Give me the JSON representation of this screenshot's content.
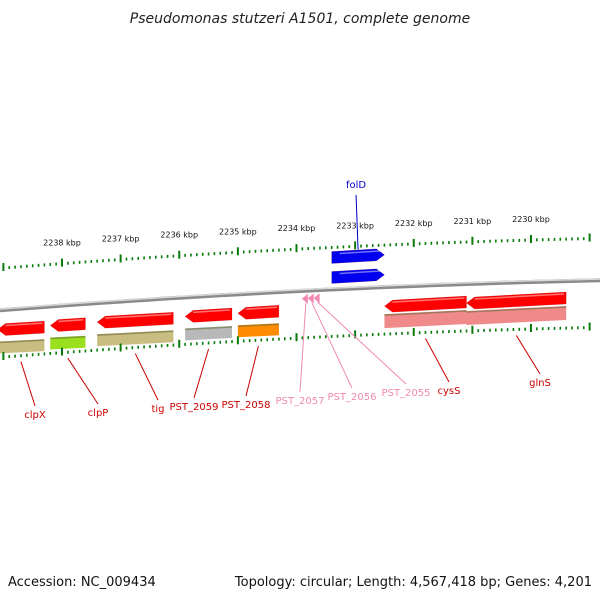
{
  "title": "Pseudomonas stutzeri A1501, complete genome",
  "footer": {
    "accession": "Accession: NC_009434",
    "summary": "Topology: circular; Length: 4,567,418 bp; Genes: 4,201"
  },
  "colors": {
    "cds_red": "#ff0000",
    "cds_pink": "#f08a8a",
    "rna_blue": "#0000ee",
    "tick_green": "#0a7a0a",
    "track_olive": "#c9bd82",
    "track_grey": "#b8b8b8",
    "track_orange": "#ff8c00",
    "track_lime": "#9be01e",
    "backbone": "#8a8a8a",
    "label_red": "#cc0000",
    "label_pink": "#f08ab0",
    "label_blue": "#0000cc"
  },
  "scale": {
    "unit": "kbp",
    "ticks": [
      {
        "kbp": 2238,
        "label": "2238 kbp"
      },
      {
        "kbp": 2237,
        "label": "2237 kbp"
      },
      {
        "kbp": 2236,
        "label": "2236 kbp"
      },
      {
        "kbp": 2235,
        "label": "2235 kbp"
      },
      {
        "kbp": 2234,
        "label": "2234 kbp"
      },
      {
        "kbp": 2233,
        "label": "2233 kbp"
      },
      {
        "kbp": 2232,
        "label": "2232 kbp"
      },
      {
        "kbp": 2231,
        "label": "2231 kbp"
      },
      {
        "kbp": 2230,
        "label": "2230 kbp"
      }
    ]
  },
  "genes": [
    {
      "name": "clpX",
      "type": "cds",
      "strand": "-",
      "start": 2239.1,
      "end": 2238.3
    },
    {
      "name": "clpP",
      "type": "cds",
      "strand": "-",
      "start": 2238.2,
      "end": 2237.6
    },
    {
      "name": "tig",
      "type": "cds",
      "strand": "-",
      "start": 2237.4,
      "end": 2236.1
    },
    {
      "name": "PST_2059",
      "type": "cds",
      "strand": "-",
      "start": 2235.9,
      "end": 2235.1
    },
    {
      "name": "PST_2058",
      "type": "cds",
      "strand": "-",
      "start": 2235.0,
      "end": 2234.3
    },
    {
      "name": "PST_2057",
      "type": "trna",
      "strand": "-",
      "start": 2233.88,
      "end": 2233.8
    },
    {
      "name": "PST_2056",
      "type": "trna",
      "strand": "-",
      "start": 2233.78,
      "end": 2233.7
    },
    {
      "name": "PST_2055",
      "type": "trna",
      "strand": "-",
      "start": 2233.68,
      "end": 2233.6
    },
    {
      "name": "folD",
      "type": "rna",
      "strand": "+",
      "start": 2233.4,
      "end": 2232.5
    },
    {
      "name": "cysS",
      "type": "cds",
      "strand": "-",
      "start": 2232.5,
      "end": 2231.1
    },
    {
      "name": "glnS",
      "type": "cds",
      "strand": "-",
      "start": 2231.1,
      "end": 2229.4
    }
  ],
  "icons": {
    "trna_marker": "pink-triangle-icon"
  }
}
